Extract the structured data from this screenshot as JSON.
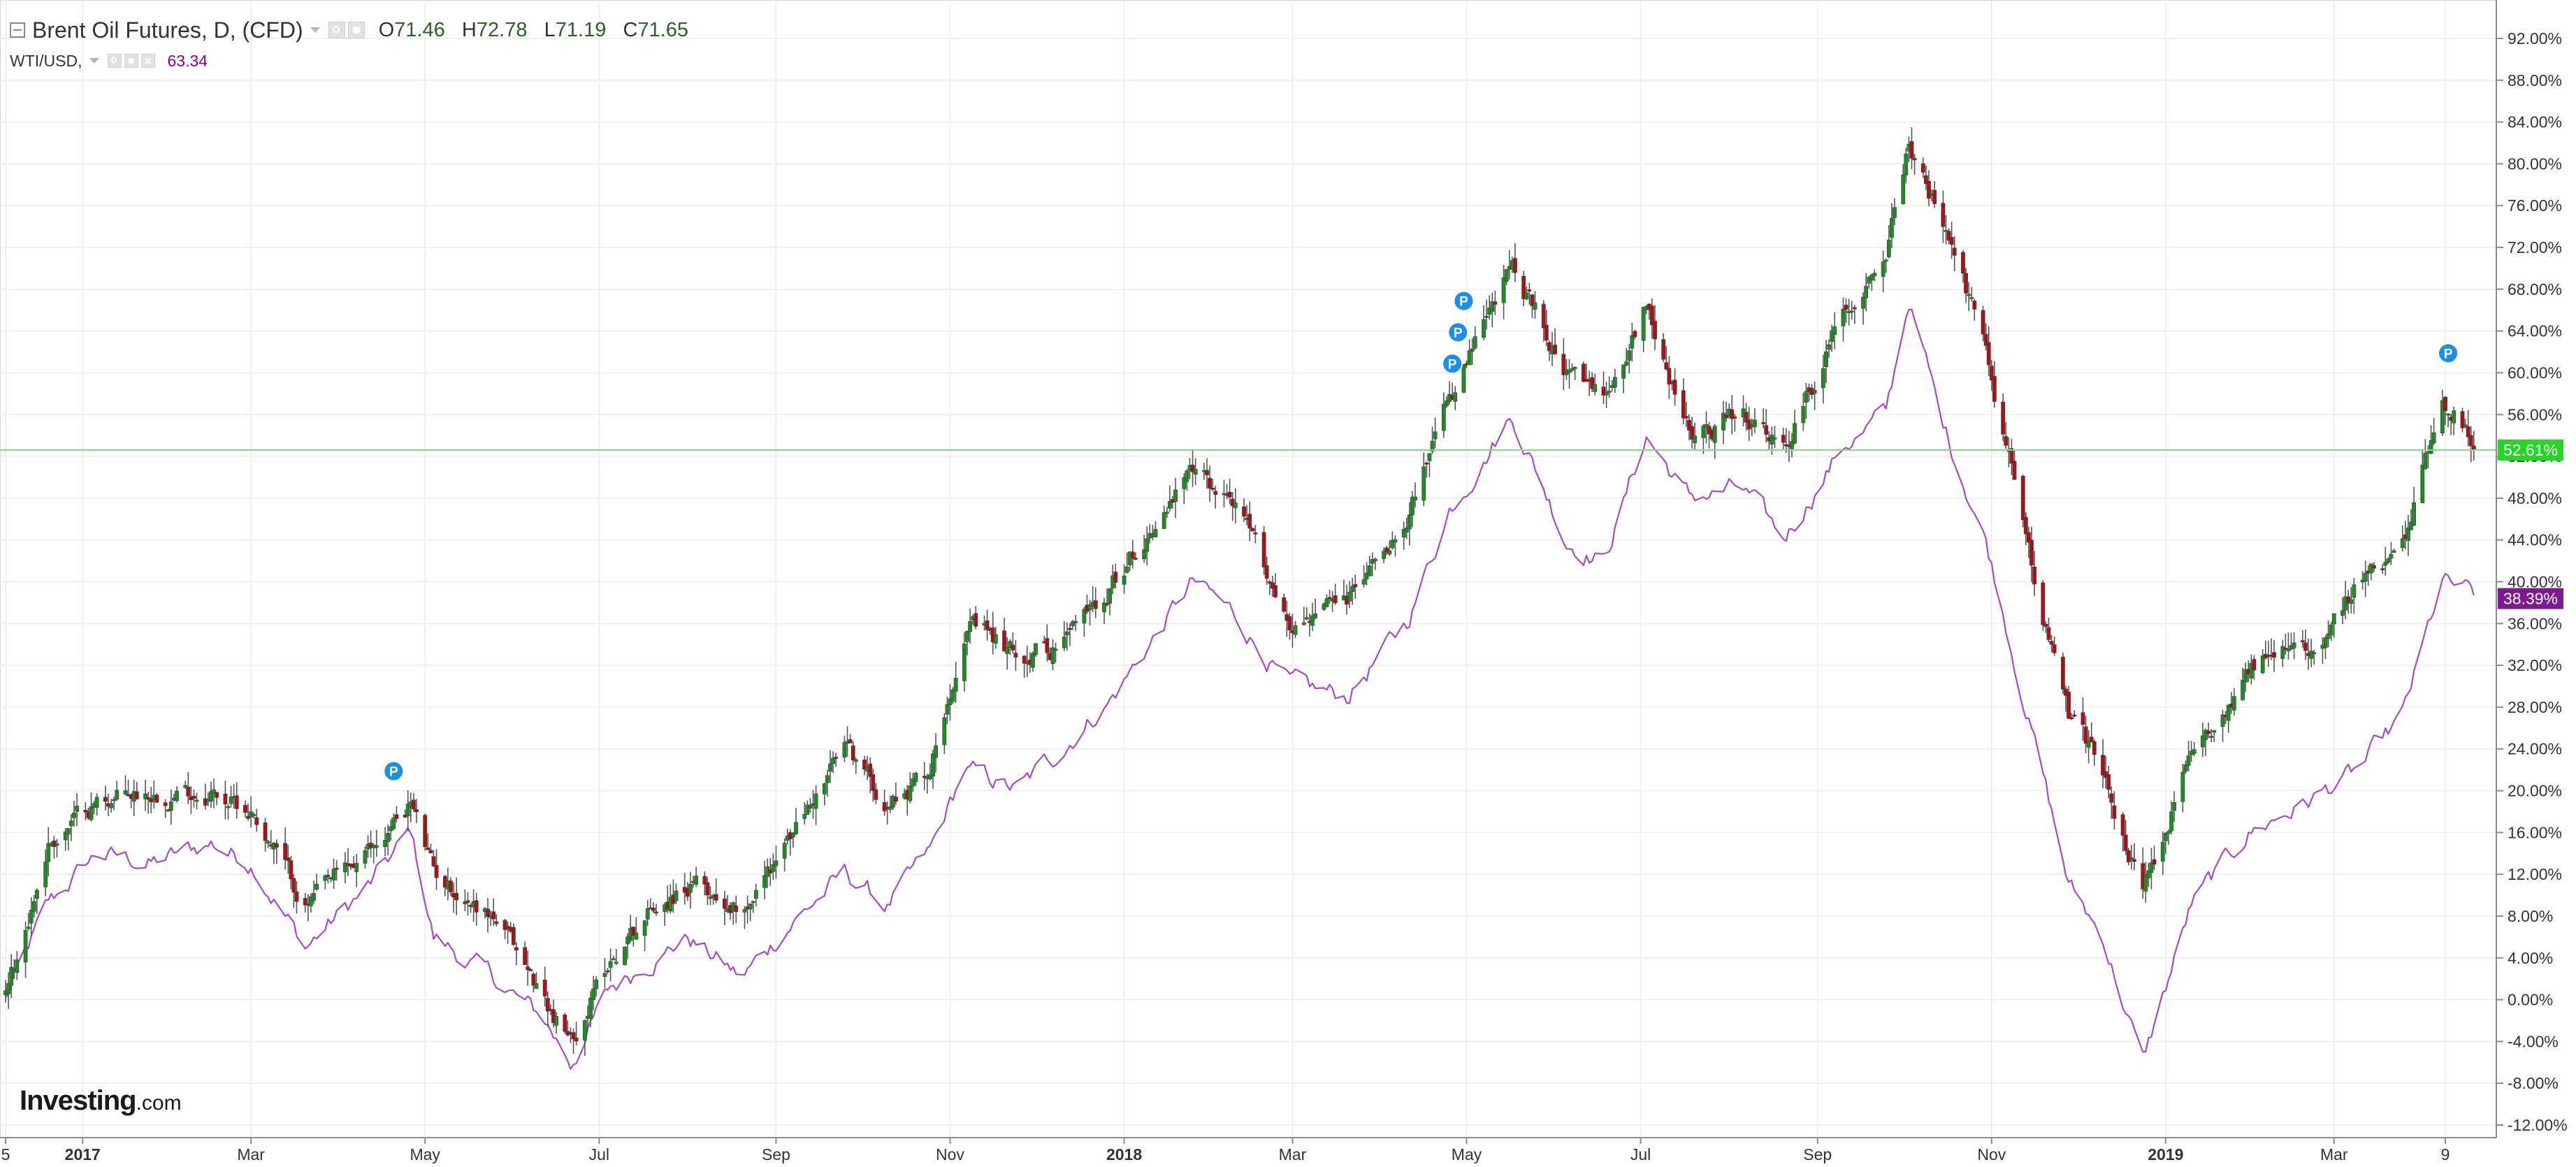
{
  "legend": {
    "main_symbol": "Brent Oil Futures, D, (CFD)",
    "open_label": "O",
    "open": "71.46",
    "high_label": "H",
    "high": "72.78",
    "low_label": "L",
    "low": "71.19",
    "close_label": "C",
    "close": "71.65",
    "compare_symbol": "WTI/USD,",
    "compare_value": "63.34",
    "icons": [
      "collapse-icon",
      "caret-down-icon",
      "eye-icon",
      "gear-icon",
      "close-icon"
    ]
  },
  "logo": {
    "brand": "Investing",
    "domain": ".com"
  },
  "colors": {
    "up_candle": "#1f8b24",
    "down_candle": "#a4151a",
    "wick": "#555555",
    "compare_line": "#a64ac9",
    "last_price_line": "#7ddf7d",
    "last_price_badge": "#27d427",
    "compare_badge": "#7c1a8f",
    "marker": "#1e8fe8",
    "grid": "#ececec"
  },
  "chart_data": {
    "type": "line",
    "title": "Brent Oil Futures, D, (CFD)",
    "xlabel": "",
    "ylabel": "",
    "y_unit": "percent change",
    "ylim": [
      -12,
      92
    ],
    "y_ticks": [
      "92.00%",
      "88.00%",
      "84.00%",
      "80.00%",
      "76.00%",
      "72.00%",
      "68.00%",
      "64.00%",
      "60.00%",
      "56.00%",
      "52.00%",
      "48.00%",
      "44.00%",
      "40.00%",
      "36.00%",
      "32.00%",
      "28.00%",
      "24.00%",
      "20.00%",
      "16.00%",
      "12.00%",
      "8.00%",
      "4.00%",
      "0.00%",
      "-4.00%",
      "-8.00%",
      "-12.00%"
    ],
    "x_range": [
      "2016-12-05",
      "2019-04-21"
    ],
    "x_ticks": [
      {
        "label": "5",
        "date": "2016-12-05",
        "bold": false
      },
      {
        "label": "2017",
        "date": "2017-01-01",
        "bold": true
      },
      {
        "label": "Mar",
        "date": "2017-03-01",
        "bold": false
      },
      {
        "label": "May",
        "date": "2017-05-01",
        "bold": false
      },
      {
        "label": "Jul",
        "date": "2017-07-01",
        "bold": false
      },
      {
        "label": "Sep",
        "date": "2017-09-01",
        "bold": false
      },
      {
        "label": "Nov",
        "date": "2017-11-01",
        "bold": false
      },
      {
        "label": "2018",
        "date": "2018-01-01",
        "bold": true
      },
      {
        "label": "Mar",
        "date": "2018-03-01",
        "bold": false
      },
      {
        "label": "May",
        "date": "2018-05-01",
        "bold": false
      },
      {
        "label": "Jul",
        "date": "2018-07-01",
        "bold": false
      },
      {
        "label": "Sep",
        "date": "2018-09-01",
        "bold": false
      },
      {
        "label": "Nov",
        "date": "2018-11-01",
        "bold": false
      },
      {
        "label": "2019",
        "date": "2019-01-01",
        "bold": true
      },
      {
        "label": "Mar",
        "date": "2019-03-01",
        "bold": false
      },
      {
        "label": "9",
        "date": "2019-04-09",
        "bold": false
      }
    ],
    "grid": true,
    "legend_position": "top-left",
    "series": [
      {
        "name": "Brent Oil Futures, D, (CFD)",
        "kind": "candlestick",
        "x": [
          "2016-12-05",
          "2016-12-20",
          "2017-01-06",
          "2017-01-25",
          "2017-02-15",
          "2017-03-02",
          "2017-03-20",
          "2017-04-12",
          "2017-04-26",
          "2017-05-04",
          "2017-05-25",
          "2017-06-12",
          "2017-06-21",
          "2017-07-05",
          "2017-07-20",
          "2017-08-01",
          "2017-08-20",
          "2017-09-05",
          "2017-09-25",
          "2017-10-10",
          "2017-10-25",
          "2017-11-06",
          "2017-11-25",
          "2017-12-10",
          "2017-12-28",
          "2018-01-15",
          "2018-01-25",
          "2018-02-08",
          "2018-02-28",
          "2018-03-20",
          "2018-04-10",
          "2018-04-25",
          "2018-05-17",
          "2018-06-05",
          "2018-06-18",
          "2018-07-03",
          "2018-07-18",
          "2018-08-05",
          "2018-08-20",
          "2018-09-10",
          "2018-09-25",
          "2018-10-03",
          "2018-10-15",
          "2018-10-30",
          "2018-11-15",
          "2018-11-28",
          "2018-12-10",
          "2018-12-24",
          "2019-01-10",
          "2019-01-30",
          "2019-02-20",
          "2019-03-10",
          "2019-03-25",
          "2019-04-08",
          "2019-04-21"
        ],
        "values": [
          0,
          15,
          19,
          20,
          20,
          18,
          9,
          14,
          19,
          12,
          8,
          0,
          -4,
          4,
          9,
          11,
          9,
          15,
          24,
          19,
          22,
          36,
          33,
          34,
          40,
          47,
          50,
          48,
          36,
          38,
          47,
          57,
          70,
          60,
          57,
          67,
          54,
          56,
          52,
          66,
          72,
          82,
          74,
          62,
          42,
          27,
          22,
          10,
          23,
          32,
          34,
          40,
          43,
          58,
          52.61
        ]
      },
      {
        "name": "WTI/USD",
        "kind": "line",
        "x": [
          "2016-12-05",
          "2016-12-20",
          "2017-01-06",
          "2017-01-25",
          "2017-02-15",
          "2017-03-02",
          "2017-03-20",
          "2017-04-12",
          "2017-04-26",
          "2017-05-04",
          "2017-05-25",
          "2017-06-12",
          "2017-06-21",
          "2017-07-05",
          "2017-07-20",
          "2017-08-01",
          "2017-08-20",
          "2017-09-05",
          "2017-09-25",
          "2017-10-10",
          "2017-10-25",
          "2017-11-06",
          "2017-11-25",
          "2017-12-10",
          "2017-12-28",
          "2018-01-15",
          "2018-01-25",
          "2018-02-08",
          "2018-02-28",
          "2018-03-20",
          "2018-04-10",
          "2018-04-25",
          "2018-05-17",
          "2018-06-05",
          "2018-06-18",
          "2018-07-03",
          "2018-07-18",
          "2018-08-05",
          "2018-08-20",
          "2018-09-10",
          "2018-09-25",
          "2018-10-03",
          "2018-10-15",
          "2018-10-30",
          "2018-11-15",
          "2018-11-28",
          "2018-12-10",
          "2018-12-24",
          "2019-01-10",
          "2019-01-30",
          "2019-02-20",
          "2019-03-10",
          "2019-03-25",
          "2019-04-08",
          "2019-04-21"
        ],
        "values": [
          0,
          9,
          14,
          13,
          15,
          13,
          5,
          11,
          16,
          6,
          2,
          -2,
          -6,
          1,
          4,
          6,
          2,
          7,
          12,
          9,
          14,
          22,
          20,
          24,
          29,
          36,
          40,
          37,
          30,
          29,
          36,
          47,
          56,
          44,
          42,
          54,
          48,
          49,
          44,
          53,
          56,
          67,
          55,
          44,
          26,
          11,
          6,
          -6,
          9,
          16,
          19,
          22,
          27,
          40,
          38.39
        ]
      }
    ],
    "markers": [
      {
        "label": "P",
        "date": "2017-04-20",
        "value": 20
      },
      {
        "label": "P",
        "date": "2018-04-26",
        "value": 59
      },
      {
        "label": "P",
        "date": "2018-04-28",
        "value": 62
      },
      {
        "label": "P",
        "date": "2018-04-30",
        "value": 65
      },
      {
        "label": "P",
        "date": "2019-04-10",
        "value": 60
      }
    ],
    "last_values": [
      {
        "series": "Brent Oil Futures, D, (CFD)",
        "label": "52.61%",
        "value": 52.61
      },
      {
        "series": "WTI/USD",
        "label": "38.39%",
        "value": 38.39
      }
    ]
  }
}
